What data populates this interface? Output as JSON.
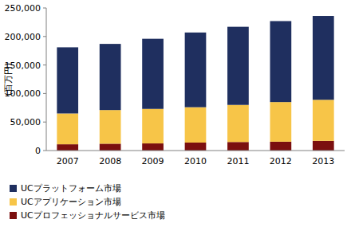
{
  "chart_data": {
    "type": "bar",
    "stacked": true,
    "grid": false,
    "legend": "bottom",
    "y_label": "(百万円)",
    "categories": [
      "2007",
      "2008",
      "2009",
      "2010",
      "2011",
      "2012",
      "2013"
    ],
    "series": [
      {
        "name": "UCプラットフォーム市場",
        "color": "#1f2f5f",
        "values": [
          116000,
          116000,
          123000,
          131000,
          137000,
          142000,
          147000
        ]
      },
      {
        "name": "UCアプリケーション市場",
        "color": "#f7c548",
        "values": [
          54000,
          59000,
          60500,
          62000,
          65000,
          69500,
          72000
        ]
      },
      {
        "name": "UCプロフェッショナルサービス市場",
        "color": "#7b0f0f",
        "values": [
          11000,
          12000,
          12500,
          14000,
          15000,
          15500,
          17000
        ]
      }
    ],
    "ylim": [
      0,
      250000
    ],
    "yticks": [
      0,
      {
        "value": 50000,
        "label": "50,000"
      },
      {
        "value": 100000,
        "label": "100,000"
      },
      {
        "value": 150000,
        "label": "150,000"
      },
      {
        "value": 200000,
        "label": "200,000"
      },
      {
        "value": 250000,
        "label": "250,000"
      }
    ]
  }
}
